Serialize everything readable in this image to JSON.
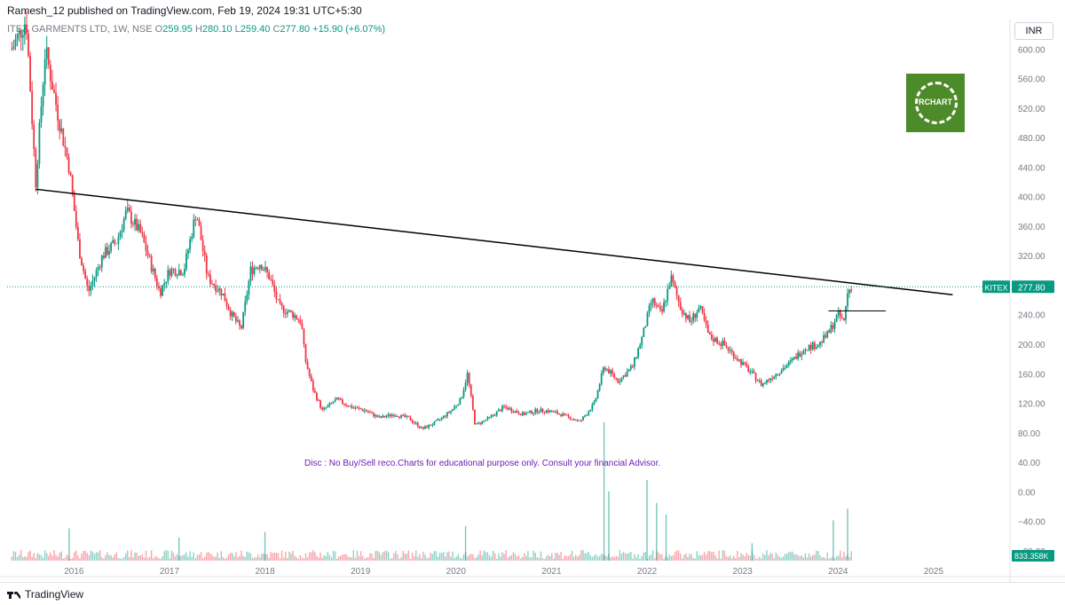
{
  "header": {
    "publisher_text": "Ramesh_12 published on TradingView.com, Feb 19, 2024 19:31 UTC+5:30"
  },
  "legend": {
    "symbol_text": "ITEX GARMENTS LTD, 1W, NSE",
    "open_label": "O",
    "open": "259.95",
    "high_label": "H",
    "high": "280.10",
    "low_label": "L",
    "low": "259.40",
    "close_label": "C",
    "close": "277.80",
    "change": "+15.90 (+6.07%)"
  },
  "currency": "INR",
  "watermark": {
    "text": "RCHART",
    "color": "#4d8b2a"
  },
  "disclaimer": "Disc  : No Buy/Sell reco.Charts for educational purpose only.  Consult your financial Advisor.",
  "footer": {
    "brand": "TradingView"
  },
  "colors": {
    "up": "#089981",
    "down": "#f23645",
    "text": "#131722",
    "axis": "#787b86",
    "disclaimer": "#6a1fb5"
  },
  "chart_data": {
    "type": "candlestick",
    "symbol": "KITEX",
    "interval": "1W",
    "y_tick_labels": [
      "600.00",
      "560.00",
      "520.00",
      "480.00",
      "440.00",
      "400.00",
      "360.00",
      "320.00",
      "280.00",
      "240.00",
      "200.00",
      "160.00",
      "120.00",
      "80.00",
      "40.00",
      "0.00",
      "−40.00",
      "−80.00"
    ],
    "y_tick_values": [
      600,
      560,
      520,
      480,
      440,
      400,
      360,
      320,
      280,
      240,
      200,
      160,
      120,
      80,
      40,
      0,
      -40,
      -80
    ],
    "ylim": [
      -115,
      640
    ],
    "x_tick_labels": [
      "2016",
      "2017",
      "2018",
      "2019",
      "2020",
      "2021",
      "2022",
      "2023",
      "2024",
      "2025"
    ],
    "x_tick_values": [
      2016,
      2017,
      2018,
      2019,
      2020,
      2021,
      2022,
      2023,
      2024,
      2025
    ],
    "xlim": [
      2015.3,
      2025.8
    ],
    "last_price": 277.8,
    "last_price_label": "277.80",
    "volume_label": "833.358K",
    "trendline": {
      "points": [
        [
          2015.6,
          410
        ],
        [
          2025.2,
          267
        ]
      ]
    },
    "horizontal_level": {
      "x": [
        2023.9,
        2024.5
      ],
      "y": 245
    },
    "price_path": [
      [
        2015.35,
        600
      ],
      [
        2015.5,
        640
      ],
      [
        2015.6,
        420
      ],
      [
        2015.7,
        600
      ],
      [
        2015.85,
        500
      ],
      [
        2015.95,
        440
      ],
      [
        2016.05,
        330
      ],
      [
        2016.15,
        270
      ],
      [
        2016.3,
        320
      ],
      [
        2016.45,
        340
      ],
      [
        2016.55,
        380
      ],
      [
        2016.7,
        350
      ],
      [
        2016.8,
        310
      ],
      [
        2016.9,
        270
      ],
      [
        2017.0,
        300
      ],
      [
        2017.15,
        300
      ],
      [
        2017.28,
        380
      ],
      [
        2017.4,
        290
      ],
      [
        2017.55,
        270
      ],
      [
        2017.65,
        240
      ],
      [
        2017.75,
        220
      ],
      [
        2017.85,
        300
      ],
      [
        2017.95,
        310
      ],
      [
        2018.05,
        290
      ],
      [
        2018.15,
        250
      ],
      [
        2018.3,
        240
      ],
      [
        2018.38,
        230
      ],
      [
        2018.42,
        180
      ],
      [
        2018.5,
        140
      ],
      [
        2018.6,
        110
      ],
      [
        2018.75,
        125
      ],
      [
        2018.9,
        115
      ],
      [
        2019.05,
        110
      ],
      [
        2019.2,
        100
      ],
      [
        2019.35,
        105
      ],
      [
        2019.5,
        100
      ],
      [
        2019.65,
        85
      ],
      [
        2019.8,
        95
      ],
      [
        2019.95,
        110
      ],
      [
        2020.05,
        125
      ],
      [
        2020.12,
        160
      ],
      [
        2020.2,
        90
      ],
      [
        2020.35,
        100
      ],
      [
        2020.5,
        115
      ],
      [
        2020.7,
        105
      ],
      [
        2020.85,
        110
      ],
      [
        2020.95,
        110
      ],
      [
        2021.1,
        105
      ],
      [
        2021.3,
        95
      ],
      [
        2021.45,
        120
      ],
      [
        2021.55,
        170
      ],
      [
        2021.7,
        150
      ],
      [
        2021.85,
        170
      ],
      [
        2021.95,
        210
      ],
      [
        2022.05,
        260
      ],
      [
        2022.15,
        240
      ],
      [
        2022.25,
        290
      ],
      [
        2022.35,
        250
      ],
      [
        2022.45,
        230
      ],
      [
        2022.55,
        250
      ],
      [
        2022.65,
        210
      ],
      [
        2022.8,
        200
      ],
      [
        2022.95,
        180
      ],
      [
        2023.1,
        160
      ],
      [
        2023.2,
        145
      ],
      [
        2023.35,
        160
      ],
      [
        2023.5,
        175
      ],
      [
        2023.65,
        195
      ],
      [
        2023.8,
        200
      ],
      [
        2023.9,
        215
      ],
      [
        2024.0,
        240
      ],
      [
        2024.06,
        230
      ],
      [
        2024.1,
        270
      ],
      [
        2024.14,
        277.8
      ]
    ],
    "volume_spikes": [
      [
        2015.95,
        28
      ],
      [
        2017.1,
        20
      ],
      [
        2018.0,
        25
      ],
      [
        2020.1,
        30
      ],
      [
        2021.55,
        120
      ],
      [
        2021.6,
        60
      ],
      [
        2022.0,
        70
      ],
      [
        2022.1,
        50
      ],
      [
        2022.2,
        40
      ],
      [
        2023.1,
        15
      ],
      [
        2023.95,
        35
      ],
      [
        2024.1,
        45
      ]
    ]
  }
}
